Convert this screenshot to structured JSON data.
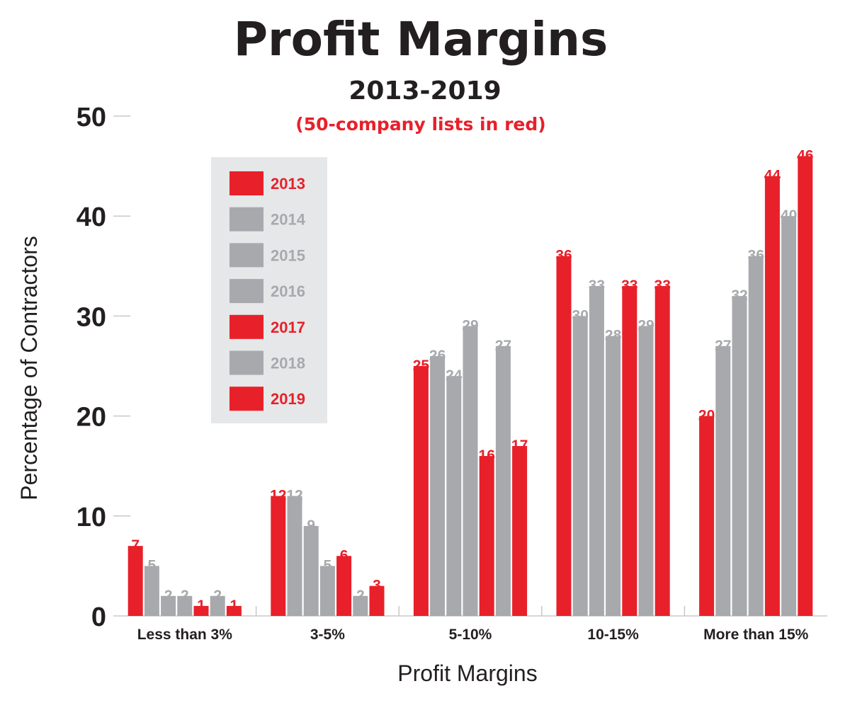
{
  "chart_data": {
    "type": "bar",
    "title": "Profit Margins",
    "subtitle": "2013-2019",
    "note": "(50-company lists in red)",
    "xlabel": "Profit Margins",
    "ylabel": "Percentage of Contractors",
    "ylim": [
      0,
      50
    ],
    "yticks": [
      "0",
      "10",
      "20",
      "30",
      "40",
      "50"
    ],
    "grid": false,
    "legend_position": "top-left",
    "categories": [
      "Less than 3%",
      "3-5%",
      "5-10%",
      "10-15%",
      "More than 15%"
    ],
    "series": [
      {
        "name": "2013",
        "color": "#e8202a",
        "values": [
          7,
          12,
          25,
          36,
          20
        ]
      },
      {
        "name": "2014",
        "color": "#a7a9ac",
        "values": [
          5,
          12,
          26,
          30,
          27
        ]
      },
      {
        "name": "2015",
        "color": "#a7a9ac",
        "values": [
          2,
          9,
          24,
          33,
          32
        ]
      },
      {
        "name": "2016",
        "color": "#a7a9ac",
        "values": [
          2,
          5,
          29,
          28,
          36
        ]
      },
      {
        "name": "2017",
        "color": "#e8202a",
        "values": [
          1,
          6,
          16,
          33,
          44
        ]
      },
      {
        "name": "2018",
        "color": "#a7a9ac",
        "values": [
          2,
          2,
          27,
          29,
          40
        ]
      },
      {
        "name": "2019",
        "color": "#e8202a",
        "values": [
          1,
          3,
          17,
          33,
          46
        ]
      }
    ]
  },
  "colors": {
    "red": "#e8202a",
    "gray": "#a7a9ac",
    "legend_bg": "#e6e7e8",
    "text": "#231f20"
  }
}
